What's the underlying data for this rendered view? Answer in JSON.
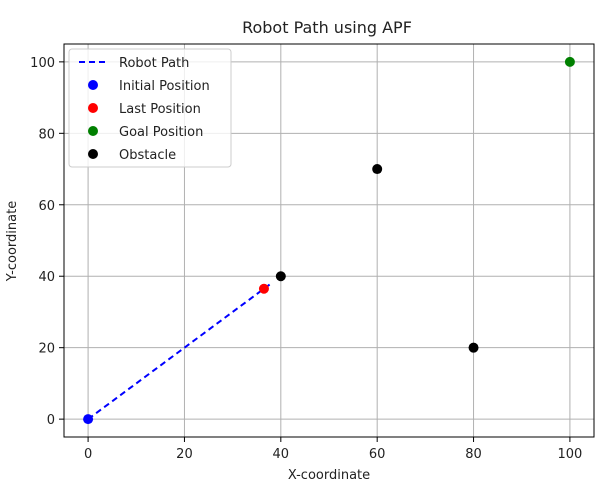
{
  "chart_data": {
    "type": "scatter",
    "title": "Robot Path using APF",
    "xlabel": "X-coordinate",
    "ylabel": "Y-coordinate",
    "xlim": [
      -5,
      105
    ],
    "ylim": [
      -5,
      105
    ],
    "x_ticks": [
      0,
      20,
      40,
      60,
      80,
      100
    ],
    "y_ticks": [
      0,
      20,
      40,
      60,
      80,
      100
    ],
    "grid": true,
    "legend_position": "top-left",
    "series": [
      {
        "name": "Robot Path",
        "kind": "line",
        "style": "dashed",
        "color": "#0000ff",
        "points": [
          [
            0,
            0
          ],
          [
            38,
            38
          ]
        ]
      },
      {
        "name": "Initial Position",
        "kind": "marker",
        "color": "#0000ff",
        "points": [
          [
            0,
            0
          ]
        ]
      },
      {
        "name": "Last Position",
        "kind": "marker",
        "color": "#ff0000",
        "points": [
          [
            36.5,
            36.5
          ]
        ]
      },
      {
        "name": "Goal Position",
        "kind": "marker",
        "color": "#008000",
        "points": [
          [
            100,
            100
          ]
        ]
      },
      {
        "name": "Obstacle",
        "kind": "marker",
        "color": "#000000",
        "points": [
          [
            40,
            40
          ],
          [
            60,
            70
          ],
          [
            80,
            20
          ]
        ]
      }
    ]
  }
}
